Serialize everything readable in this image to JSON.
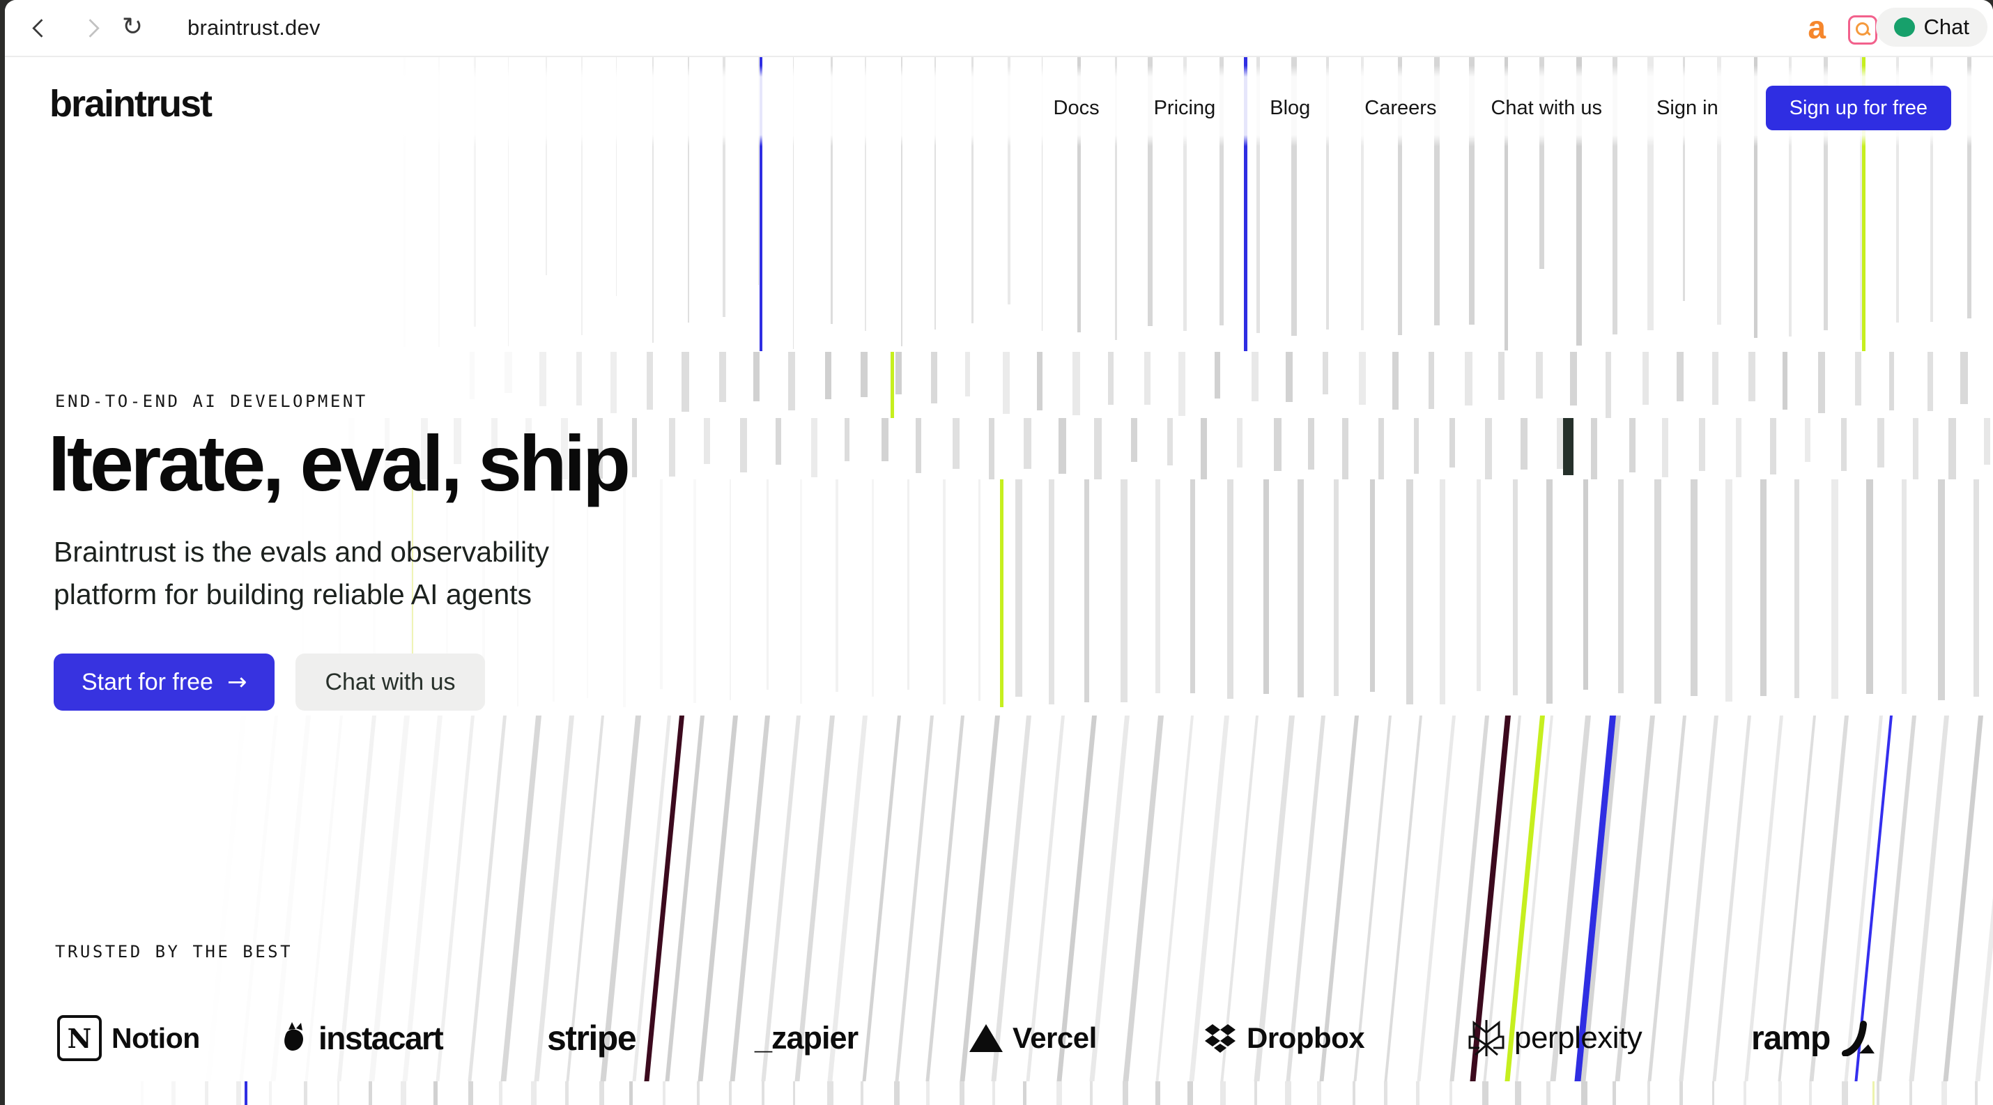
{
  "browser": {
    "url": "braintrust.dev",
    "reload_glyph": "↻",
    "ext_a_label": "a",
    "chat_button": "Chat"
  },
  "header": {
    "logo": "braintrust",
    "nav": [
      "Docs",
      "Pricing",
      "Blog",
      "Careers",
      "Chat with us",
      "Sign in"
    ],
    "signup_label": "Sign up for free"
  },
  "hero": {
    "eyebrow": "END-TO-END AI DEVELOPMENT",
    "title": "Iterate, eval, ship",
    "subtitle_line1": "Braintrust is the evals and observability",
    "subtitle_line2": "platform for building reliable AI agents",
    "primary_cta": "Start for free",
    "primary_cta_arrow": "→",
    "secondary_cta": "Chat with us"
  },
  "trusted": {
    "label": "TRUSTED BY THE BEST",
    "logos": [
      {
        "name": "notion",
        "text": "Notion",
        "icon": "notion-cube-icon"
      },
      {
        "name": "instacart",
        "text": "instacart",
        "icon": "carrot-icon"
      },
      {
        "name": "stripe",
        "text": "stripe",
        "icon": "none"
      },
      {
        "name": "zapier",
        "text": "_zapier",
        "icon": "none"
      },
      {
        "name": "vercel",
        "text": "Vercel",
        "icon": "triangle-icon"
      },
      {
        "name": "dropbox",
        "text": "Dropbox",
        "icon": "dropbox-diamonds-icon"
      },
      {
        "name": "perplexity",
        "text": "perplexity",
        "icon": "perplexity-star-icon"
      },
      {
        "name": "ramp",
        "text": "ramp",
        "icon": "ramp-swoosh-icon"
      }
    ]
  },
  "colors": {
    "accent_blue": "#2f2ee2",
    "bright_blue": "#342fee",
    "chartreuse": "#c6ef1f",
    "pale_yellow": "#edf3ad",
    "maroon": "#3c0a1e",
    "dark_bar": "#26312b",
    "gray_bar": "#d6d6d6",
    "brand_black": "#0c0c0c",
    "chat_green": "#17a06b",
    "ext_orange": "#f5862c",
    "ext_pink": "#f2618c"
  }
}
